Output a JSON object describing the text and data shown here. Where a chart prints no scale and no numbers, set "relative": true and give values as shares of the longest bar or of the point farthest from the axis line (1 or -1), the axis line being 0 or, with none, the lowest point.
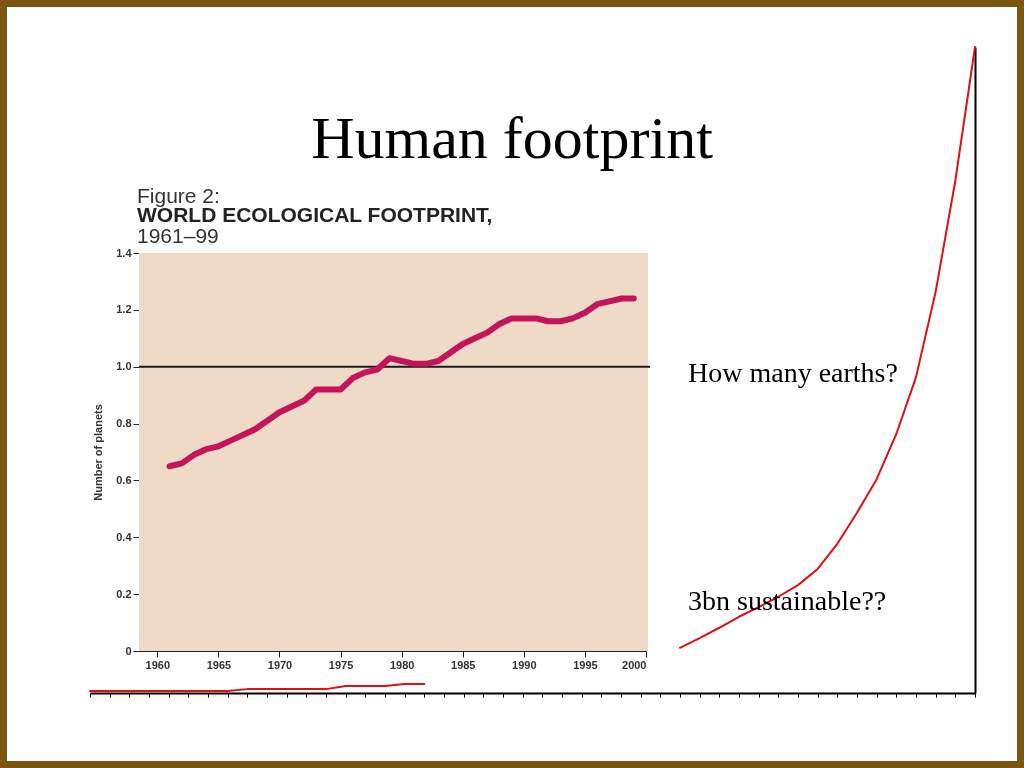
{
  "chart_data": [
    {
      "type": "line",
      "title": "Human footprint",
      "ylabel": "Number of planets",
      "annotations": [
        "Figure 2:",
        "WORLD ECOLOGICAL FOOTPRINT,",
        "1961–99",
        "How many earths?",
        "3bn sustainable??"
      ],
      "x": [
        1961,
        1962,
        1963,
        1964,
        1965,
        1966,
        1967,
        1968,
        1969,
        1970,
        1971,
        1972,
        1973,
        1974,
        1975,
        1976,
        1977,
        1978,
        1979,
        1980,
        1981,
        1982,
        1983,
        1984,
        1985,
        1986,
        1987,
        1988,
        1989,
        1990,
        1991,
        1992,
        1993,
        1994,
        1995,
        1996,
        1997,
        1998,
        1999
      ],
      "series": [
        {
          "color": "#c4145a",
          "values": [
            0.65,
            0.66,
            0.69,
            0.71,
            0.72,
            0.74,
            0.76,
            0.78,
            0.81,
            0.84,
            0.86,
            0.88,
            0.92,
            0.92,
            0.92,
            0.96,
            0.98,
            0.99,
            1.03,
            1.02,
            1.01,
            1.01,
            1.02,
            1.05,
            1.08,
            1.1,
            1.12,
            1.15,
            1.17,
            1.17,
            1.17,
            1.16,
            1.16,
            1.17,
            1.19,
            1.22,
            1.23,
            1.24,
            1.24
          ]
        }
      ],
      "xlim": [
        1958.5,
        2000
      ],
      "xticks": [
        1960,
        1965,
        1970,
        1975,
        1980,
        1985,
        1990,
        1995,
        2000
      ],
      "ylim": [
        0,
        1.4
      ],
      "yticks": [
        0,
        0.2,
        0.4,
        0.6,
        0.8,
        {
          "value": 1,
          "label": "1.0"
        },
        1.2,
        1.4
      ],
      "ref_lines": [
        {
          "axis": "y",
          "value": 1,
          "color": "#1a1a1a"
        }
      ]
    },
    {
      "type": "line",
      "relative": true,
      "categories": [
        null,
        null,
        null,
        null,
        null,
        null,
        null,
        null,
        null,
        null,
        null,
        null,
        null,
        null,
        null,
        null,
        null,
        null,
        null,
        null,
        null,
        null,
        null,
        null,
        null,
        null,
        null,
        null,
        null,
        null,
        null,
        null,
        null,
        null,
        null,
        null,
        null,
        null,
        null,
        null,
        null,
        null,
        null,
        null,
        null,
        null
      ],
      "series": [
        {
          "color": "#dd1111",
          "values": [
            0.003,
            0.003,
            0.003,
            0.003,
            0.003,
            0.003,
            0.003,
            0.003,
            0.006,
            0.006,
            0.006,
            0.006,
            0.006,
            0.011,
            0.011,
            0.011,
            0.014,
            0.014,
            null,
            null,
            null,
            null,
            null,
            null,
            null,
            null,
            null,
            null,
            null,
            null,
            null,
            null,
            null,
            null,
            null,
            null,
            null,
            null,
            null,
            null,
            null,
            null,
            null,
            null,
            null,
            null
          ]
        },
        {
          "color": "#dd1111",
          "values": [
            null,
            null,
            null,
            null,
            null,
            null,
            null,
            null,
            null,
            null,
            null,
            null,
            null,
            null,
            null,
            null,
            null,
            null,
            null,
            null,
            null,
            null,
            null,
            null,
            null,
            null,
            null,
            null,
            null,
            null,
            0.07,
            0.085,
            0.101,
            0.118,
            0.133,
            0.149,
            0.167,
            0.192,
            0.231,
            0.279,
            0.331,
            0.401,
            0.489,
            0.621,
            0.793,
            1.0
          ]
        }
      ]
    }
  ]
}
